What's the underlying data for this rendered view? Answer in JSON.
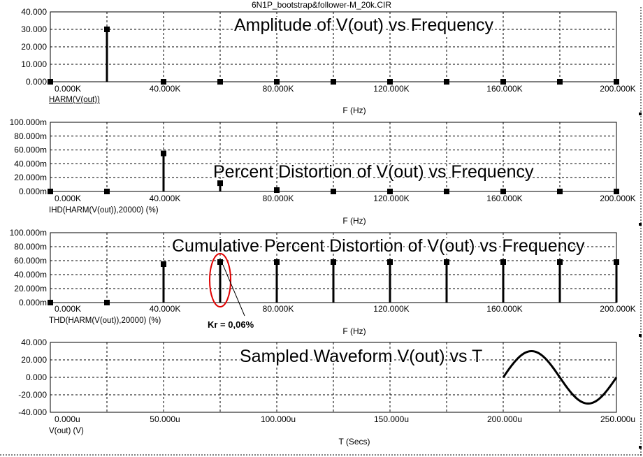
{
  "window": {
    "title": "6N1P_bootstrap&follower-M_20k.CIR"
  },
  "chart_data": [
    {
      "type": "bar",
      "title": "Amplitude of V(out) vs Frequency",
      "trace_label": "HARM(V(out))",
      "xlabel": "F (Hz)",
      "xlim": [
        0,
        200000
      ],
      "ylim": [
        0,
        40
      ],
      "x_ticks": [
        "0.000K",
        "40.000K",
        "80.000K",
        "120.000K",
        "160.000K",
        "200.000K"
      ],
      "y_ticks": [
        "0.000",
        "10.000",
        "20.000",
        "30.000",
        "40.000"
      ],
      "x": [
        0,
        20000,
        40000,
        60000,
        80000,
        100000,
        120000,
        140000,
        160000,
        180000,
        200000
      ],
      "values": [
        0,
        30,
        0,
        0,
        0,
        0,
        0,
        0,
        0,
        0,
        0
      ]
    },
    {
      "type": "bar",
      "title": "Percent Distortion of V(out) vs Frequency",
      "trace_label": "IHD(HARM(V(out)),20000) (%)",
      "xlabel": "F (Hz)",
      "xlim": [
        0,
        200000
      ],
      "ylim": [
        0,
        0.1
      ],
      "x_ticks": [
        "0.000K",
        "40.000K",
        "80.000K",
        "120.000K",
        "160.000K",
        "200.000K"
      ],
      "y_ticks": [
        "0.000m",
        "20.000m",
        "40.000m",
        "60.000m",
        "80.000m",
        "100.000m"
      ],
      "x": [
        0,
        20000,
        40000,
        60000,
        80000,
        100000,
        120000,
        140000,
        160000,
        180000,
        200000
      ],
      "values": [
        0,
        0,
        0.055,
        0.012,
        0.002,
        0,
        0,
        0,
        0,
        0,
        0
      ]
    },
    {
      "type": "bar",
      "title": "Cumulative Percent Distortion of V(out) vs Frequency",
      "trace_label": "THD(HARM(V(out)),20000) (%)",
      "xlabel": "F (Hz)",
      "xlim": [
        0,
        200000
      ],
      "ylim": [
        0,
        0.1
      ],
      "x_ticks": [
        "0.000K",
        "40.000K",
        "80.000K",
        "120.000K",
        "160.000K",
        "200.000K"
      ],
      "y_ticks": [
        "0.000m",
        "20.000m",
        "40.000m",
        "60.000m",
        "80.000m",
        "100.000m"
      ],
      "x": [
        0,
        20000,
        40000,
        60000,
        80000,
        100000,
        120000,
        140000,
        160000,
        180000,
        200000
      ],
      "values": [
        0,
        0,
        0.055,
        0.058,
        0.058,
        0.058,
        0.058,
        0.058,
        0.058,
        0.058,
        0.058
      ],
      "annotation": {
        "text": "Kr = 0,06%",
        "x": 60000,
        "color": "#e00000"
      }
    },
    {
      "type": "line",
      "title": "Sampled Waveform  V(out) vs T",
      "trace_label": "V(out) (V)",
      "xlabel": "T (Secs)",
      "xlim": [
        0,
        0.00025
      ],
      "ylim": [
        -40,
        40
      ],
      "x_ticks": [
        "0.000u",
        "50.000u",
        "100.000u",
        "150.000u",
        "200.000u",
        "250.000u"
      ],
      "y_ticks": [
        "-40.000",
        "-20.000",
        "0.000",
        "20.000",
        "40.000"
      ],
      "series": [
        {
          "amplitude": 30,
          "frequency": 20000,
          "t_start": 0.0002,
          "t_end": 0.00025
        }
      ]
    }
  ]
}
